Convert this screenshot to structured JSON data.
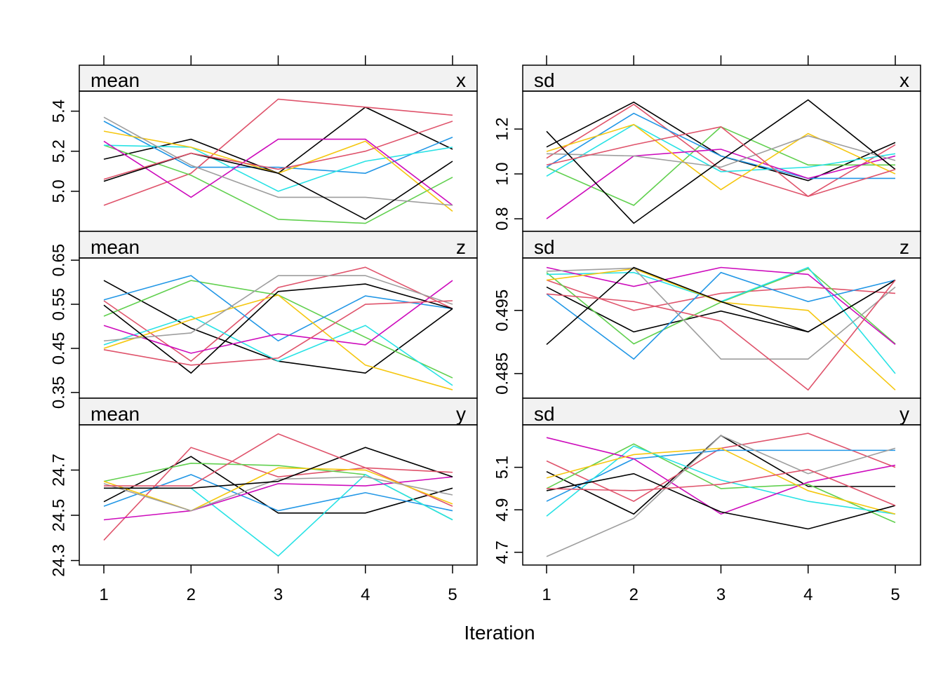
{
  "chart_data": [
    {
      "type": "line",
      "strip_left": "mean",
      "strip_right": "x",
      "x": [
        1,
        2,
        3,
        4,
        5
      ],
      "ylim": [
        4.8,
        5.5
      ],
      "yticks": [
        "5.0",
        "5.2",
        "5.4"
      ],
      "series": [
        {
          "color": "#000000",
          "values": [
            5.16,
            5.26,
            5.09,
            5.42,
            5.21
          ]
        },
        {
          "color": "#DF536B",
          "values": [
            4.93,
            5.09,
            5.46,
            5.42,
            5.38
          ]
        },
        {
          "color": "#61D04F",
          "values": [
            5.23,
            5.08,
            4.86,
            4.84,
            5.07
          ]
        },
        {
          "color": "#2297E6",
          "values": [
            5.35,
            5.12,
            5.12,
            5.09,
            5.27
          ]
        },
        {
          "color": "#28E2E5",
          "values": [
            5.23,
            5.22,
            5.0,
            5.15,
            5.22
          ]
        },
        {
          "color": "#CD0BBC",
          "values": [
            5.25,
            4.97,
            5.26,
            5.26,
            4.93
          ]
        },
        {
          "color": "#F5C710",
          "values": [
            5.3,
            5.22,
            5.09,
            5.25,
            4.9
          ]
        },
        {
          "color": "#9E9E9E",
          "values": [
            5.37,
            5.13,
            4.97,
            4.97,
            4.93
          ]
        },
        {
          "color": "#000000",
          "values": [
            5.05,
            5.19,
            5.09,
            4.86,
            5.15
          ]
        },
        {
          "color": "#DF536B",
          "values": [
            5.06,
            5.19,
            5.11,
            5.2,
            5.35
          ]
        }
      ]
    },
    {
      "type": "line",
      "strip_left": "sd",
      "strip_right": "x",
      "x": [
        1,
        2,
        3,
        4,
        5
      ],
      "ylim": [
        0.744,
        1.369
      ],
      "yticks": [
        "0.8",
        "1.0",
        "1.2"
      ],
      "series": [
        {
          "color": "#000000",
          "values": [
            1.12,
            1.32,
            1.08,
            0.97,
            1.14
          ]
        },
        {
          "color": "#DF536B",
          "values": [
            1.07,
            1.31,
            1.02,
            0.9,
            1.13
          ]
        },
        {
          "color": "#61D04F",
          "values": [
            1.03,
            0.86,
            1.21,
            1.04,
            1.04
          ]
        },
        {
          "color": "#2297E6",
          "values": [
            1.03,
            1.27,
            1.08,
            0.98,
            0.98
          ]
        },
        {
          "color": "#28E2E5",
          "values": [
            0.99,
            1.22,
            1.01,
            1.03,
            1.09
          ]
        },
        {
          "color": "#CD0BBC",
          "values": [
            0.8,
            1.08,
            1.11,
            0.98,
            1.08
          ]
        },
        {
          "color": "#F5C710",
          "values": [
            1.1,
            1.22,
            0.93,
            1.18,
            1.0
          ]
        },
        {
          "color": "#9E9E9E",
          "values": [
            1.09,
            1.08,
            1.03,
            1.17,
            1.06
          ]
        },
        {
          "color": "#000000",
          "values": [
            1.19,
            0.78,
            1.06,
            1.33,
            1.02
          ]
        },
        {
          "color": "#DF536B",
          "values": [
            1.04,
            1.13,
            1.21,
            0.9,
            1.02
          ]
        }
      ]
    },
    {
      "type": "line",
      "strip_left": "mean",
      "strip_right": "z",
      "x": [
        1,
        2,
        3,
        4,
        5
      ],
      "ylim": [
        0.337,
        0.655
      ],
      "yticks": [
        "0.35",
        "0.45",
        "0.55",
        "0.65"
      ],
      "series": [
        {
          "color": "#000000",
          "values": [
            0.604,
            0.496,
            0.421,
            0.394,
            0.54
          ]
        },
        {
          "color": "#DF536B",
          "values": [
            0.558,
            0.421,
            0.588,
            0.634,
            0.54
          ]
        },
        {
          "color": "#61D04F",
          "values": [
            0.523,
            0.604,
            0.571,
            0.475,
            0.383
          ]
        },
        {
          "color": "#2297E6",
          "values": [
            0.56,
            0.615,
            0.467,
            0.569,
            0.54
          ]
        },
        {
          "color": "#28E2E5",
          "values": [
            0.458,
            0.523,
            0.421,
            0.502,
            0.366
          ]
        },
        {
          "color": "#CD0BBC",
          "values": [
            0.502,
            0.439,
            0.483,
            0.458,
            0.604
          ]
        },
        {
          "color": "#F5C710",
          "values": [
            0.45,
            0.515,
            0.571,
            0.412,
            0.356
          ]
        },
        {
          "color": "#9E9E9E",
          "values": [
            0.467,
            0.485,
            0.615,
            0.615,
            0.55
          ]
        },
        {
          "color": "#000000",
          "values": [
            0.548,
            0.394,
            0.579,
            0.596,
            0.54
          ]
        },
        {
          "color": "#DF536B",
          "values": [
            0.447,
            0.412,
            0.428,
            0.55,
            0.558
          ]
        }
      ]
    },
    {
      "type": "line",
      "strip_left": "sd",
      "strip_right": "z",
      "x": [
        1,
        2,
        3,
        4,
        5
      ],
      "ylim": [
        0.4811,
        0.5033
      ],
      "yticks": [
        "0.485",
        "0.495"
      ],
      "series": [
        {
          "color": "#000000",
          "values": [
            0.4987,
            0.4916,
            0.4949,
            0.4916,
            0.4998
          ]
        },
        {
          "color": "#DF536B",
          "values": [
            0.4998,
            0.495,
            0.4977,
            0.4987,
            0.4977
          ]
        },
        {
          "color": "#61D04F",
          "values": [
            0.501,
            0.4897,
            0.4963,
            0.5016,
            0.4897
          ]
        },
        {
          "color": "#2297E6",
          "values": [
            0.4976,
            0.4873,
            0.501,
            0.4964,
            0.4998
          ]
        },
        {
          "color": "#28E2E5",
          "values": [
            0.5007,
            0.501,
            0.4964,
            0.5018,
            0.485
          ]
        },
        {
          "color": "#CD0BBC",
          "values": [
            0.5018,
            0.4988,
            0.5018,
            0.5007,
            0.4896
          ]
        },
        {
          "color": "#F5C710",
          "values": [
            0.4998,
            0.5016,
            0.4963,
            0.495,
            0.4824
          ]
        },
        {
          "color": "#9E9E9E",
          "values": [
            0.5012,
            0.5017,
            0.4873,
            0.4873,
            0.4987
          ]
        },
        {
          "color": "#000000",
          "values": [
            0.4896,
            0.5018,
            0.4964,
            0.4916,
            0.4998
          ]
        },
        {
          "color": "#DF536B",
          "values": [
            0.4976,
            0.4964,
            0.4933,
            0.4824,
            0.4998
          ]
        }
      ]
    },
    {
      "type": "line",
      "strip_left": "mean",
      "strip_right": "y",
      "x": [
        1,
        2,
        3,
        4,
        5
      ],
      "ylim": [
        24.28,
        24.9
      ],
      "yticks": [
        "24.3",
        "24.5",
        "24.7"
      ],
      "series": [
        {
          "color": "#000000",
          "values": [
            24.56,
            24.76,
            24.51,
            24.51,
            24.62
          ]
        },
        {
          "color": "#DF536B",
          "values": [
            24.39,
            24.8,
            24.67,
            24.71,
            24.54
          ]
        },
        {
          "color": "#61D04F",
          "values": [
            24.65,
            24.73,
            24.72,
            24.68,
            24.48
          ]
        },
        {
          "color": "#2297E6",
          "values": [
            24.54,
            24.68,
            24.52,
            24.6,
            24.52
          ]
        },
        {
          "color": "#28E2E5",
          "values": [
            24.62,
            24.62,
            24.32,
            24.68,
            24.48
          ]
        },
        {
          "color": "#CD0BBC",
          "values": [
            24.48,
            24.52,
            24.64,
            24.63,
            24.67
          ]
        },
        {
          "color": "#F5C710",
          "values": [
            24.65,
            24.52,
            24.71,
            24.7,
            24.55
          ]
        },
        {
          "color": "#9E9E9E",
          "values": [
            24.64,
            24.52,
            24.66,
            24.67,
            24.59
          ]
        },
        {
          "color": "#000000",
          "values": [
            24.62,
            24.62,
            24.65,
            24.8,
            24.67
          ]
        },
        {
          "color": "#DF536B",
          "values": [
            24.63,
            24.63,
            24.86,
            24.71,
            24.69
          ]
        }
      ]
    },
    {
      "type": "line",
      "strip_left": "sd",
      "strip_right": "y",
      "x": [
        1,
        2,
        3,
        4,
        5
      ],
      "ylim": [
        4.64,
        5.3
      ],
      "yticks": [
        "4.7",
        "4.9",
        "5.1"
      ],
      "series": [
        {
          "color": "#000000",
          "values": [
            5.08,
            4.88,
            5.25,
            5.01,
            5.01
          ]
        },
        {
          "color": "#DF536B",
          "values": [
            5.13,
            4.94,
            5.19,
            5.26,
            5.1
          ]
        },
        {
          "color": "#61D04F",
          "values": [
            5.0,
            5.21,
            5.0,
            5.02,
            4.84
          ]
        },
        {
          "color": "#2297E6",
          "values": [
            4.94,
            5.14,
            5.18,
            5.18,
            5.18
          ]
        },
        {
          "color": "#28E2E5",
          "values": [
            4.87,
            5.2,
            5.04,
            4.94,
            4.88
          ]
        },
        {
          "color": "#CD0BBC",
          "values": [
            5.24,
            5.14,
            4.88,
            5.03,
            5.11
          ]
        },
        {
          "color": "#F5C710",
          "values": [
            5.05,
            5.16,
            5.19,
            4.99,
            4.88
          ]
        },
        {
          "color": "#9E9E9E",
          "values": [
            4.68,
            4.86,
            5.25,
            5.07,
            5.19
          ]
        },
        {
          "color": "#000000",
          "values": [
            4.99,
            5.07,
            4.89,
            4.81,
            4.92
          ]
        },
        {
          "color": "#DF536B",
          "values": [
            5.0,
            4.99,
            5.02,
            5.09,
            4.92
          ]
        }
      ]
    }
  ],
  "xticks": [
    "1",
    "2",
    "3",
    "4",
    "5"
  ],
  "xlabel": "Iteration",
  "strip_color": "#F2F2F2"
}
